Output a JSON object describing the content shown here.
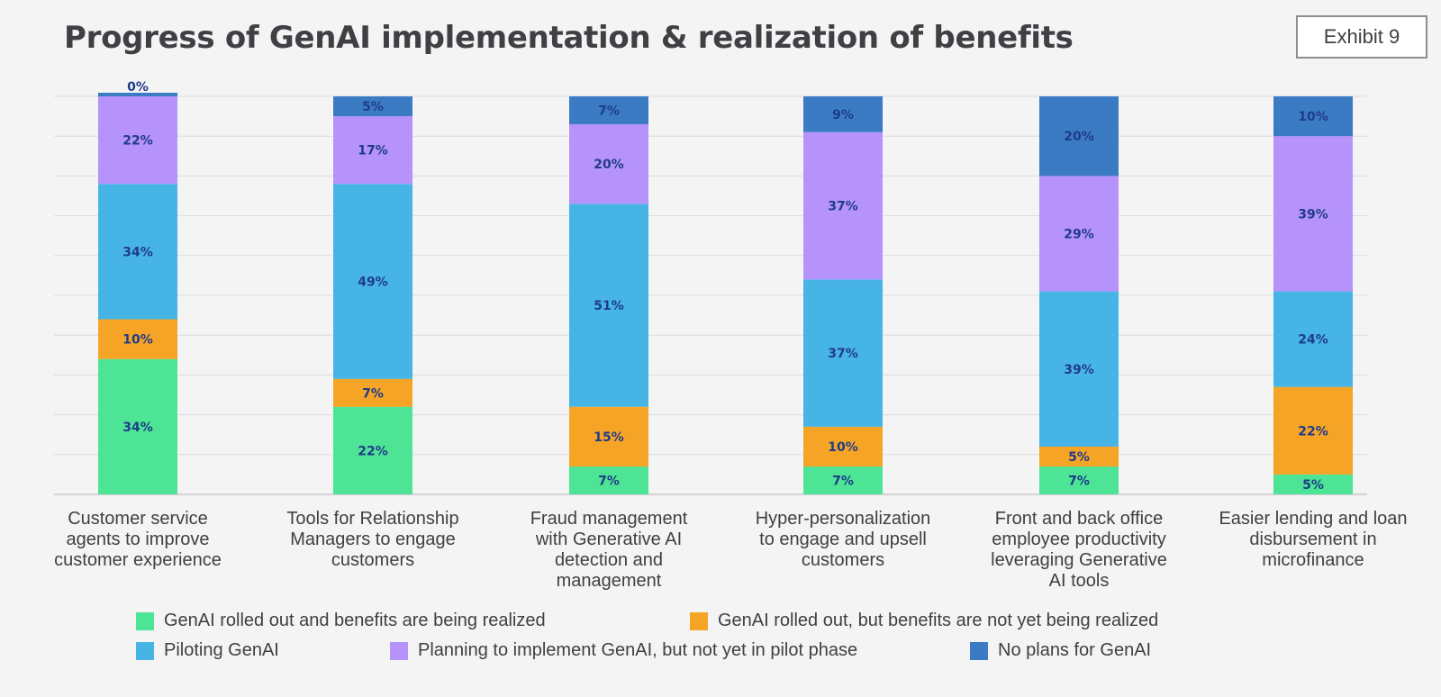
{
  "header": {
    "title": "Progress of GenAI implementation & realization of benefits",
    "exhibit": "Exhibit 9"
  },
  "chart_data": {
    "type": "bar",
    "stacked": true,
    "orientation": "vertical",
    "categories": [
      [
        "Customer service",
        "agents to improve",
        "customer experience"
      ],
      [
        "Tools for Relationship",
        "Managers to engage",
        "customers"
      ],
      [
        "Fraud management",
        "with Generative AI",
        "detection and",
        "management"
      ],
      [
        "Hyper-personalization",
        "to engage and upsell",
        "customers"
      ],
      [
        "Front and back office",
        "employee productivity",
        "leveraging Generative",
        "AI tools"
      ],
      [
        "Easier lending and loan",
        "disbursement in",
        "microfinance"
      ]
    ],
    "series": [
      {
        "name": "GenAI rolled out and benefits are being realized",
        "color": "#4ee495",
        "values": [
          34,
          22,
          7,
          7,
          7,
          5
        ]
      },
      {
        "name": "GenAI rolled out, but benefits are not yet being realized",
        "color": "#f6a426",
        "values": [
          10,
          7,
          15,
          10,
          5,
          22
        ]
      },
      {
        "name": "Piloting GenAI",
        "color": "#47b4e6",
        "values": [
          34,
          49,
          51,
          37,
          39,
          24
        ]
      },
      {
        "name": "Planning to implement GenAI, but not yet in pilot phase",
        "color": "#b593fb",
        "values": [
          22,
          17,
          20,
          37,
          29,
          39
        ]
      },
      {
        "name": "No plans for GenAI",
        "color": "#3b7bc4",
        "values": [
          0,
          5,
          7,
          9,
          20,
          10
        ]
      }
    ],
    "value_suffix": "%",
    "ylim": [
      0,
      100
    ],
    "grid": true,
    "legend_position": "bottom"
  }
}
